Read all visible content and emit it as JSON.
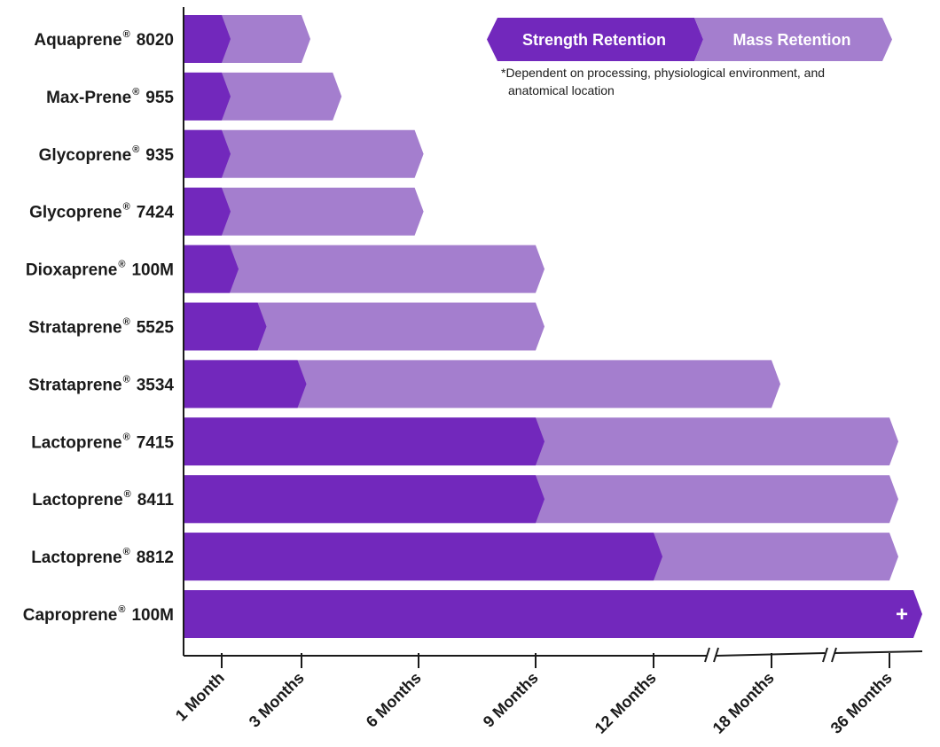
{
  "colors": {
    "strength": "#7228BC",
    "mass": "#A47ECE",
    "axis": "#1a1a1a",
    "text": "#1a1a1a"
  },
  "chart_data": {
    "type": "bar",
    "orientation": "horizontal",
    "stacked": true,
    "title": "",
    "xlabel": "",
    "ylabel": "",
    "x_ticks": [
      "1 Month",
      "3 Months",
      "6 Months",
      "9 Months",
      "12 Months",
      "18 Months",
      "36 Months"
    ],
    "x_tick_values_months": [
      1,
      3,
      6,
      9,
      12,
      18,
      36
    ],
    "x_axis_breaks": "between 12 and 18 Months; between 18 and 36 Months",
    "categories": [
      {
        "name": "Aquaprene",
        "suffix": "8020"
      },
      {
        "name": "Max-Prene",
        "suffix": "955"
      },
      {
        "name": "Glycoprene",
        "suffix": "935"
      },
      {
        "name": "Glycoprene",
        "suffix": "7424"
      },
      {
        "name": "Dioxaprene",
        "suffix": "100M"
      },
      {
        "name": "Strataprene",
        "suffix": "5525"
      },
      {
        "name": "Strataprene",
        "suffix": "3534"
      },
      {
        "name": "Lactoprene",
        "suffix": "7415"
      },
      {
        "name": "Lactoprene",
        "suffix": "8411"
      },
      {
        "name": "Lactoprene",
        "suffix": "8812"
      },
      {
        "name": "Caproprene",
        "suffix": "100M"
      }
    ],
    "series": [
      {
        "name": "Strength Retention",
        "values_months": [
          1,
          1,
          1,
          1,
          1.2,
          1.9,
          2.9,
          9,
          9,
          12,
          36
        ]
      },
      {
        "name": "Mass Retention",
        "values_months": [
          3,
          3.8,
          5.9,
          5.9,
          9,
          9,
          18,
          36,
          36,
          36,
          36
        ]
      }
    ],
    "beyond_axis_marker": {
      "category_index": 10,
      "symbol": "+"
    },
    "legend": {
      "placement": "top-right",
      "strength_label": "Strength Retention",
      "mass_label": "Mass Retention",
      "note_line1": "*Dependent on processing, physiological environment, and",
      "note_line2": "anatomical location"
    },
    "registered_mark": "®"
  }
}
